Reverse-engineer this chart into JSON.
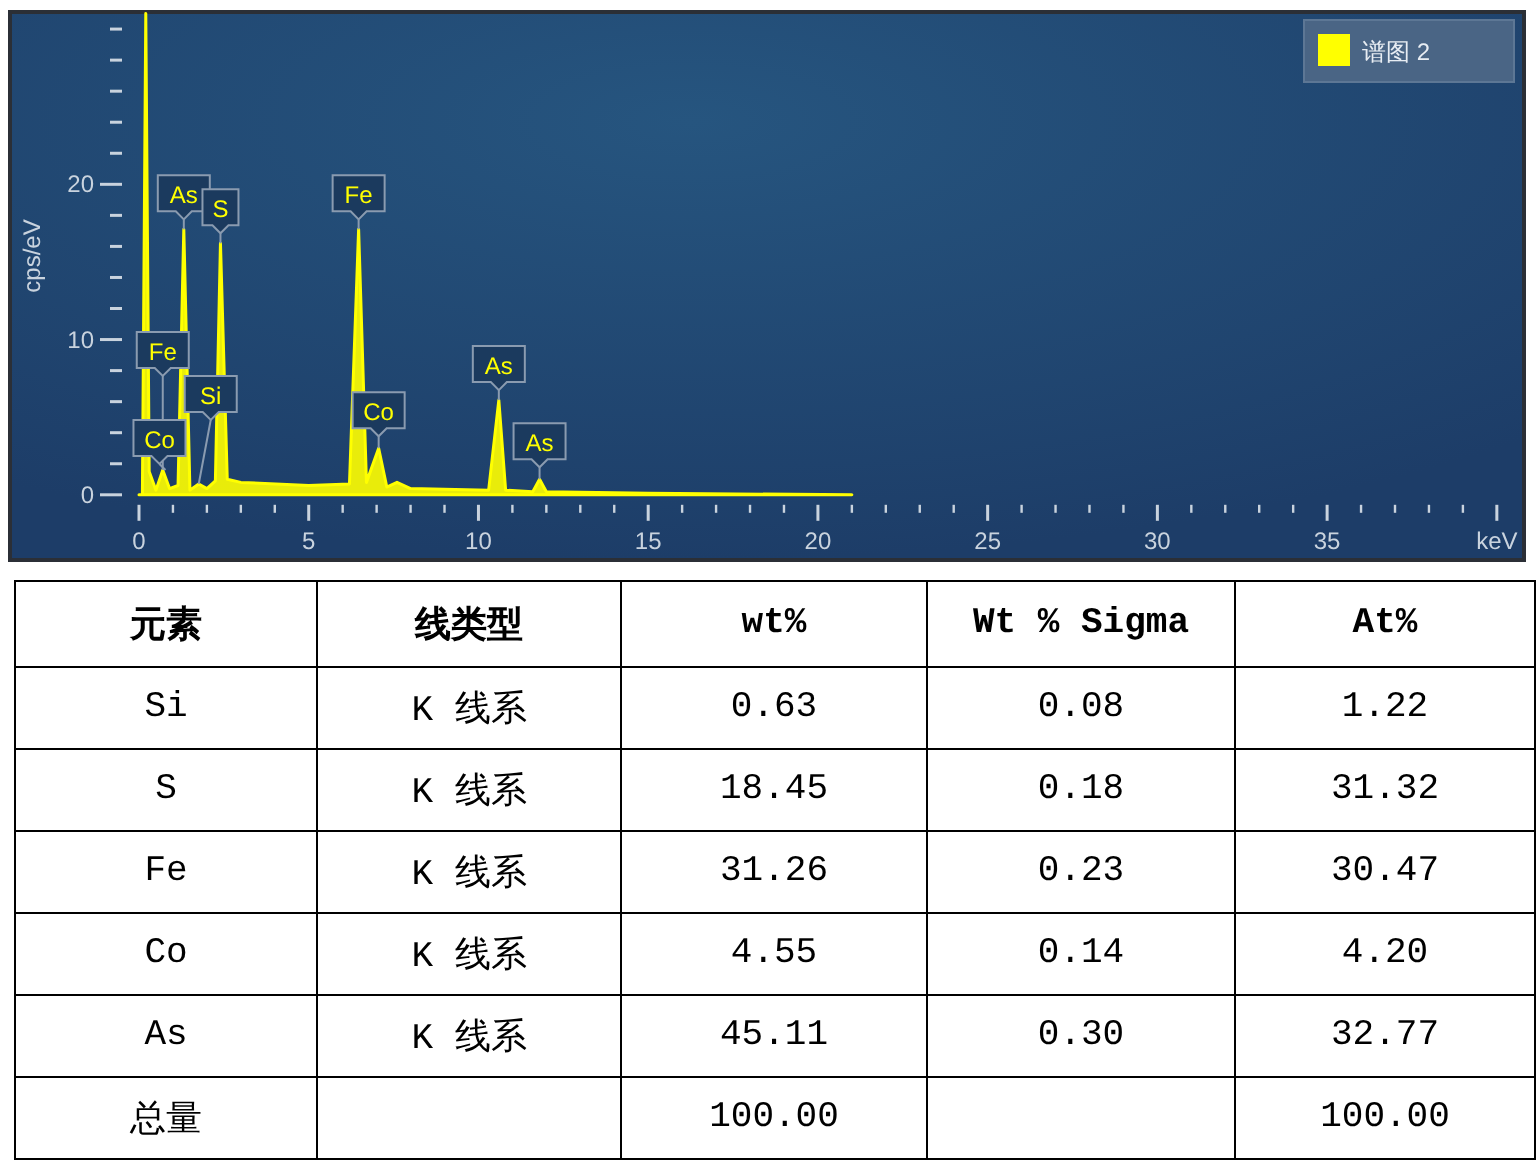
{
  "chart_data": [
    {
      "type": "area",
      "legend": "top right",
      "ylabel": "cps/eV",
      "xlim": [
        -3.8,
        40.8
      ],
      "ylim": [
        -4.2,
        31.1
      ],
      "xticks": [
        0,
        {
          "value": 1,
          "label": null
        },
        {
          "value": 2,
          "label": null
        },
        {
          "value": 3,
          "label": null
        },
        {
          "value": 4,
          "label": null
        },
        5,
        {
          "value": 6,
          "label": null
        },
        {
          "value": 7,
          "label": null
        },
        {
          "value": 8,
          "label": null
        },
        {
          "value": 9,
          "label": null
        },
        10,
        {
          "value": 11,
          "label": null
        },
        {
          "value": 12,
          "label": null
        },
        {
          "value": 13,
          "label": null
        },
        {
          "value": 14,
          "label": null
        },
        15,
        {
          "value": 16,
          "label": null
        },
        {
          "value": 17,
          "label": null
        },
        {
          "value": 18,
          "label": null
        },
        {
          "value": 19,
          "label": null
        },
        20,
        {
          "value": 21,
          "label": null
        },
        {
          "value": 22,
          "label": null
        },
        {
          "value": 23,
          "label": null
        },
        {
          "value": 24,
          "label": null
        },
        25,
        {
          "value": 26,
          "label": null
        },
        {
          "value": 27,
          "label": null
        },
        {
          "value": 28,
          "label": null
        },
        {
          "value": 29,
          "label": null
        },
        30,
        {
          "value": 31,
          "label": null
        },
        {
          "value": 32,
          "label": null
        },
        {
          "value": 33,
          "label": null
        },
        {
          "value": 34,
          "label": null
        },
        35,
        {
          "value": 36,
          "label": null
        },
        {
          "value": 37,
          "label": null
        },
        {
          "value": 38,
          "label": null
        },
        {
          "value": 39,
          "label": null
        },
        {
          "value": 40,
          "label": "keV"
        }
      ],
      "yticks": [
        0,
        {
          "value": 2,
          "label": null
        },
        {
          "value": 4,
          "label": null
        },
        {
          "value": 6,
          "label": null
        },
        {
          "value": 8,
          "label": null
        },
        10,
        {
          "value": 12,
          "label": null
        },
        {
          "value": 14,
          "label": null
        },
        {
          "value": 16,
          "label": null
        },
        {
          "value": 18,
          "label": null
        },
        20,
        {
          "value": 22,
          "label": null
        },
        {
          "value": 24,
          "label": null
        },
        {
          "value": 26,
          "label": null
        },
        {
          "value": 28,
          "label": null
        },
        {
          "value": 30,
          "label": null
        }
      ],
      "series": [
        {
          "name": "谱图 2",
          "color": "#ffff00",
          "x": [
            0,
            0.1,
            0.2,
            0.3,
            0.5,
            0.7,
            0.9,
            1.15,
            1.32,
            1.5,
            1.76,
            2.0,
            2.25,
            2.4,
            2.6,
            3,
            5,
            6.2,
            6.47,
            6.7,
            7.06,
            7.3,
            7.6,
            8,
            10.3,
            10.6,
            10.8,
            11.6,
            11.8,
            12,
            15,
            21
          ],
          "values": [
            0,
            0,
            31,
            1.5,
            0.3,
            1.6,
            0.4,
            0.6,
            17.1,
            0.3,
            0.7,
            0.4,
            0.9,
            16.2,
            1.0,
            0.8,
            0.6,
            0.7,
            17.1,
            0.8,
            3.0,
            0.5,
            0.8,
            0.4,
            0.3,
            6.1,
            0.3,
            0.2,
            1.0,
            0.2,
            0.1,
            0
          ]
        }
      ],
      "annotations": [
        {
          "text": "As",
          "x": 1.32,
          "y": 17.1
        },
        {
          "text": "S",
          "x": 2.4,
          "y": 16.2
        },
        {
          "text": "Fe",
          "x": 6.47,
          "y": 17.1
        },
        {
          "text": "Fe",
          "x": 0.7,
          "y": 1.6
        },
        {
          "text": "Co",
          "x": 0.78,
          "y": 1.6
        },
        {
          "text": "Si",
          "x": 1.76,
          "y": 0.7
        },
        {
          "text": "Co",
          "x": 7.06,
          "y": 3.0
        },
        {
          "text": "As",
          "x": 10.6,
          "y": 6.1
        },
        {
          "text": "As",
          "x": 11.8,
          "y": 1.0
        }
      ]
    },
    {
      "type": "other",
      "categories": [
        "元素",
        "线类型",
        "wt%",
        "Wt % Sigma",
        "At%"
      ],
      "cell_labels": [
        [
          "Si",
          "K 线系",
          "0.63",
          "0.08",
          "1.22"
        ],
        [
          "S",
          "K 线系",
          "18.45",
          "0.18",
          "31.32"
        ],
        [
          "Fe",
          "K 线系",
          "31.26",
          "0.23",
          "30.47"
        ],
        [
          "Co",
          "K 线系",
          "4.55",
          "0.14",
          "4.20"
        ],
        [
          "As",
          "K 线系",
          "45.11",
          "0.30",
          "32.77"
        ],
        [
          "总量",
          null,
          "100.00",
          null,
          "100.00"
        ]
      ]
    }
  ]
}
